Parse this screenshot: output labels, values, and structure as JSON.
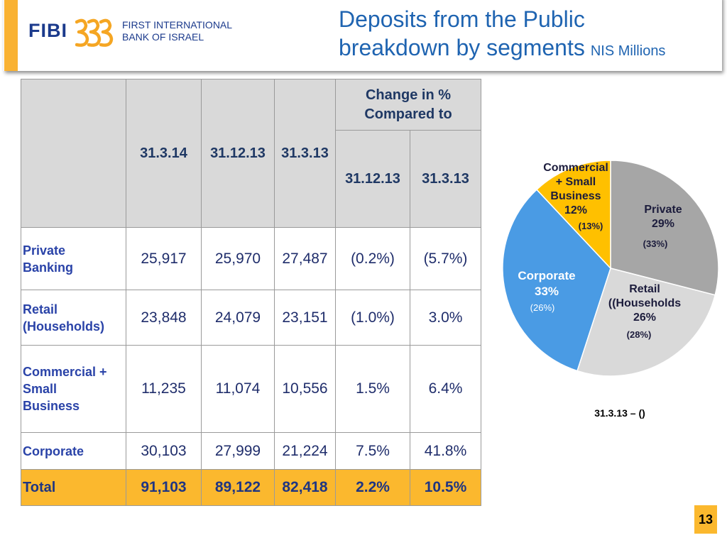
{
  "header": {
    "logo_text": "FIBI",
    "logo_icon": "fibi-swirl-icon",
    "bank_name_lines": [
      "FIRST INTERNATIONAL",
      "BANK OF ISRAEL"
    ],
    "title_lines": [
      "Deposits from the Public",
      "breakdown by segments"
    ],
    "title_unit": "NIS Millions"
  },
  "colors": {
    "accent": "#F9B233",
    "title": "#1F64B1",
    "logo": "#1B3A8C",
    "table_header_bg": "#D9D9D9",
    "label": "#2A43A8",
    "value": "#1F2D6B",
    "total_bg": "#FBB82E"
  },
  "table": {
    "columns": [
      "31.3.14",
      "31.12.13",
      "31.3.13"
    ],
    "change_header_lines": [
      "Change in %",
      "Compared to"
    ],
    "change_columns": [
      "31.12.13",
      "31.3.13"
    ],
    "rows": [
      {
        "label_lines": [
          "Private",
          "Banking"
        ],
        "values": [
          "25,917",
          "25,970",
          "27,487",
          "(0.2%)",
          "(5.7%)"
        ]
      },
      {
        "label_lines": [
          "Retail",
          "(Households)"
        ],
        "values": [
          "23,848",
          "24,079",
          "23,151",
          "(1.0%)",
          "3.0%"
        ]
      },
      {
        "label_lines": [
          "Commercial +",
          "Small",
          "Business"
        ],
        "values": [
          "11,235",
          "11,074",
          "10,556",
          "1.5%",
          "6.4%"
        ]
      },
      {
        "label_lines": [
          "Corporate"
        ],
        "values": [
          "30,103",
          "27,999",
          "21,224",
          "7.5%",
          "41.8%"
        ]
      }
    ],
    "total": {
      "label": "Total",
      "values": [
        "91,103",
        "89,122",
        "82,418",
        "2.2%",
        "10.5%"
      ]
    }
  },
  "chart_data": {
    "type": "pie",
    "slices": [
      {
        "label_lines": [
          "Private"
        ],
        "value": 29,
        "value_label": "29%",
        "prior_label": "(33%)",
        "color": "#A6A6A6"
      },
      {
        "label_lines": [
          "Retail",
          "((Households"
        ],
        "value": 26,
        "value_label": "26%",
        "prior_label": "(28%)",
        "color": "#D9D9D9"
      },
      {
        "label_lines": [
          "Corporate"
        ],
        "value": 33,
        "value_label": "33%",
        "prior_label": "(26%)",
        "color": "#4A9BE4"
      },
      {
        "label_lines": [
          "Commercial",
          "+ Small",
          "Business"
        ],
        "value": 12,
        "value_label": "12%",
        "prior_label": "(13%)",
        "color": "#FFC000"
      }
    ],
    "caption": "31.3.13 – ()"
  },
  "page_number": "13"
}
